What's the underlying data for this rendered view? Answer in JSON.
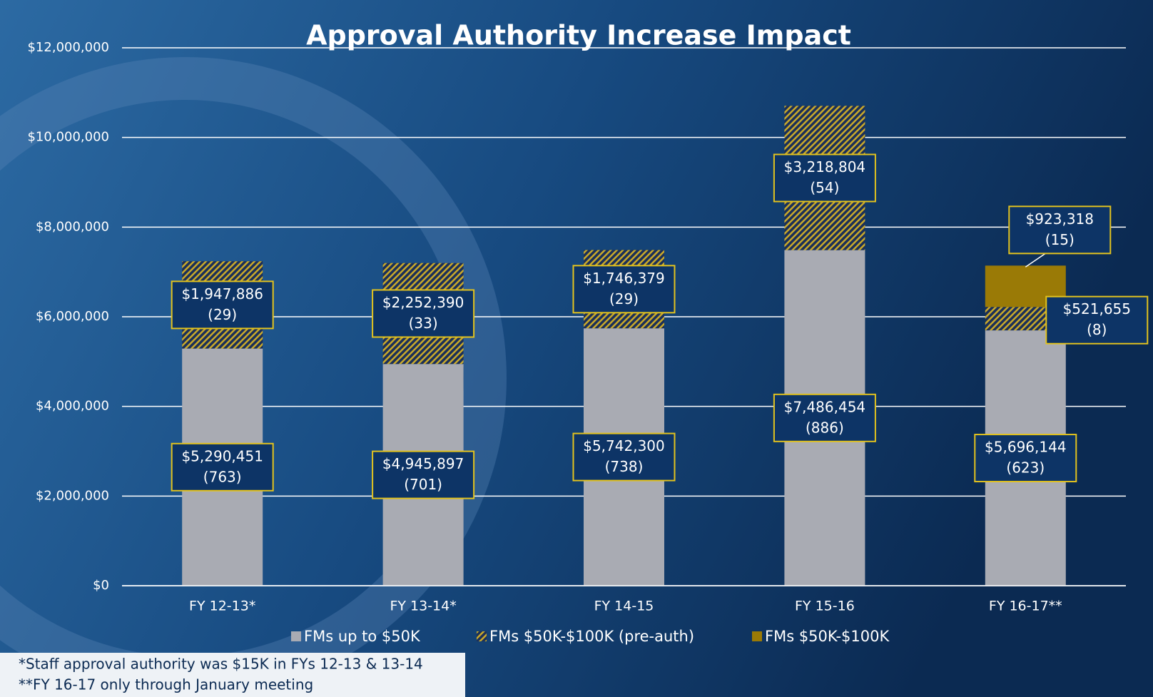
{
  "chart_data": {
    "type": "stacked-bar",
    "title": "Approval Authority Increase Impact",
    "categories": [
      "FY 12-13*",
      "FY 13-14*",
      "FY 14-15",
      "FY 15-16",
      "FY 16-17**"
    ],
    "series": [
      {
        "name": "FMs up to $50K",
        "color": "#a9abb3",
        "fill": "solid",
        "values": [
          5290451,
          4945897,
          5742300,
          7486454,
          5696144
        ],
        "value_labels": [
          "$5,290,451",
          "$4,945,897",
          "$5,742,300",
          "$7,486,454",
          "$5,696,144"
        ],
        "count_labels": [
          "(763)",
          "(701)",
          "(738)",
          "(886)",
          "(623)"
        ]
      },
      {
        "name": "FMs $50K-$100K (pre-auth)",
        "color": "#c9a92a",
        "fill": "hatch",
        "values": [
          1947886,
          2252390,
          1746379,
          3218804,
          521655
        ],
        "value_labels": [
          "$1,947,886",
          "$2,252,390",
          "$1,746,379",
          "$3,218,804",
          "$521,655"
        ],
        "count_labels": [
          "(29)",
          "(33)",
          "(29)",
          "(54)",
          "(8)"
        ]
      },
      {
        "name": "FMs $50K-$100K",
        "color": "#9a7a06",
        "fill": "solid",
        "values": [
          null,
          null,
          null,
          null,
          923318
        ],
        "value_labels": [
          null,
          null,
          null,
          null,
          "$923,318"
        ],
        "count_labels": [
          null,
          null,
          null,
          null,
          "(15)"
        ]
      }
    ],
    "ylim": [
      0,
      12000000
    ],
    "yticks": [
      {
        "value": 0,
        "label": "$0"
      },
      {
        "value": 2000000,
        "label": "$2,000,000"
      },
      {
        "value": 4000000,
        "label": "$4,000,000"
      },
      {
        "value": 6000000,
        "label": "$6,000,000"
      },
      {
        "value": 8000000,
        "label": "$8,000,000"
      },
      {
        "value": 10000000,
        "label": "$10,000,000"
      },
      {
        "value": 12000000,
        "label": "$12,000,000"
      }
    ],
    "grid": true,
    "legend": "bottom",
    "notes": [
      "*Staff approval authority was $15K in FYs 12-13 & 13-14",
      "**FY 16-17 only through January meeting"
    ]
  }
}
